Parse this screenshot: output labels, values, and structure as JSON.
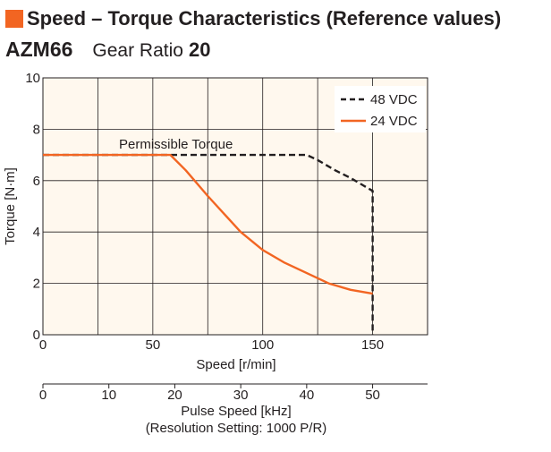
{
  "header": {
    "title": "Speed – Torque Characteristics (Reference values)",
    "model": "AZM66",
    "gear_ratio_label": "Gear Ratio",
    "gear_ratio_value": "20",
    "accent_color": "#f26522"
  },
  "chart_data": {
    "type": "line",
    "title": "Speed – Torque Characteristics (Reference values)",
    "xlabel": "Speed [r/min]",
    "ylabel": "Torque [N·m]",
    "xlim": [
      0,
      175
    ],
    "ylim": [
      0,
      10
    ],
    "x_ticks": [
      "0",
      "50",
      "100",
      "150"
    ],
    "x_tick_values": [
      0,
      50,
      100,
      150
    ],
    "y_ticks": [
      "0",
      "2",
      "4",
      "6",
      "8",
      "10"
    ],
    "y_tick_values": [
      0,
      2,
      4,
      6,
      8,
      10
    ],
    "grid": true,
    "legend_position": "top-right",
    "annotation": "Permissible Torque",
    "secondary_axis": {
      "label_line1": "Pulse Speed [kHz]",
      "label_line2": "(Resolution Setting: 1000 P/R)",
      "ticks": [
        "0",
        "10",
        "20",
        "30",
        "40",
        "50"
      ],
      "tick_values": [
        0,
        10,
        20,
        30,
        40,
        50
      ]
    },
    "series": [
      {
        "name": "48 VDC",
        "style": "dashed",
        "color": "#231f20",
        "x": [
          0,
          120,
          125,
          133,
          140,
          146,
          150,
          150
        ],
        "y": [
          7.0,
          7.0,
          6.8,
          6.4,
          6.1,
          5.8,
          5.6,
          0
        ]
      },
      {
        "name": "24 VDC",
        "style": "solid",
        "color": "#f26522",
        "x": [
          0,
          58,
          65,
          75,
          90,
          100,
          110,
          120,
          130,
          140,
          150
        ],
        "y": [
          7.0,
          7.0,
          6.4,
          5.4,
          4.0,
          3.3,
          2.8,
          2.4,
          2.0,
          1.75,
          1.6
        ]
      }
    ]
  }
}
